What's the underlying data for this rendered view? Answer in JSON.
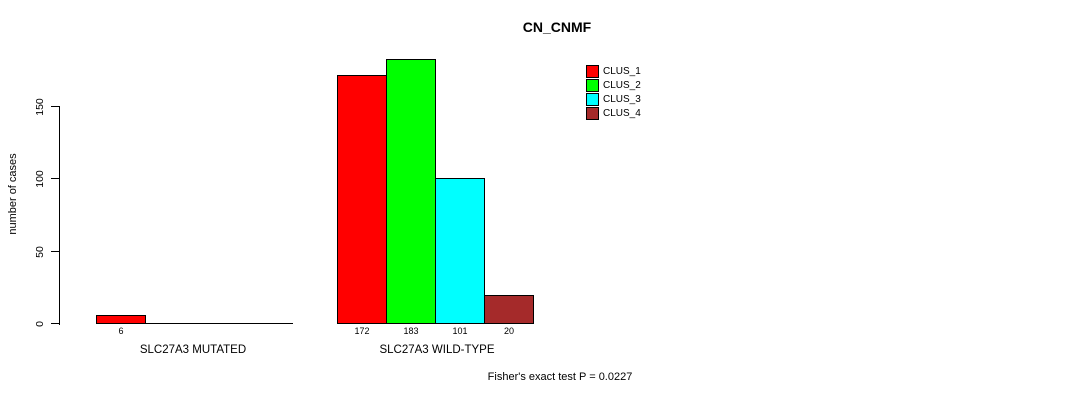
{
  "chart_data": {
    "type": "bar",
    "title": "CN_CNMF",
    "xlabel": "",
    "ylabel": "number of cases",
    "groups": [
      "SLC27A3 MUTATED",
      "SLC27A3 WILD-TYPE"
    ],
    "series": [
      {
        "name": "CLUS_1",
        "color": "#ff0000",
        "values": [
          6,
          172
        ]
      },
      {
        "name": "CLUS_2",
        "color": "#00ff00",
        "values": [
          0,
          183
        ]
      },
      {
        "name": "CLUS_3",
        "color": "#00ffff",
        "values": [
          0,
          101
        ]
      },
      {
        "name": "CLUS_4",
        "color": "#a52a2a",
        "values": [
          0,
          20
        ]
      }
    ],
    "yticks": [
      0,
      50,
      100,
      150
    ],
    "ylim": [
      0,
      190
    ],
    "grid": false,
    "legend_position": "top-right",
    "legend_box": false,
    "annotation": "Fisher's exact test P = 0.0227",
    "axis_color": "#000000",
    "background_color": "#ffffff"
  }
}
